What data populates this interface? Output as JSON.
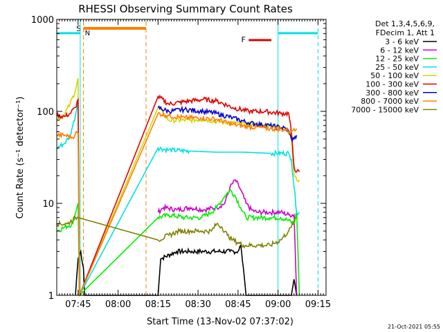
{
  "chart_data": {
    "type": "line",
    "title": "RHESSI Observing Summary Count Rates",
    "xlabel": "Start Time (13-Nov-02 07:37:02)",
    "ylabel": "Count Rate (s⁻¹ detector⁻¹)",
    "yscale": "log",
    "ylim": [
      1,
      1000
    ],
    "xlim_minutes": [
      0,
      101
    ],
    "x_ticks": [
      {
        "label": "07:45",
        "minutes": 8
      },
      {
        "label": "08:00",
        "minutes": 23
      },
      {
        "label": "08:15",
        "minutes": 38
      },
      {
        "label": "08:30",
        "minutes": 53
      },
      {
        "label": "08:45",
        "minutes": 68
      },
      {
        "label": "09:00",
        "minutes": 83
      },
      {
        "label": "09:15",
        "minutes": 98
      }
    ],
    "y_ticks": [
      {
        "label": "1",
        "value": 1
      },
      {
        "label": "10",
        "value": 10
      },
      {
        "label": "100",
        "value": 100
      },
      {
        "label": "1000",
        "value": 1000
      }
    ],
    "legend_header": [
      "Det 1,3,4,5,6,9,",
      "FDecim 1, Att 1"
    ],
    "legend_position": "right",
    "series": [
      {
        "name": "3 - 6 keV",
        "color": "#000000",
        "points": [
          [
            7,
            1
          ],
          [
            8,
            2.5
          ],
          [
            9,
            3
          ],
          [
            10,
            2
          ],
          [
            10.5,
            1
          ],
          [
            38,
            1
          ],
          [
            39,
            2.5
          ],
          [
            45,
            3
          ],
          [
            50,
            3
          ],
          [
            55,
            3
          ],
          [
            60,
            3
          ],
          [
            65,
            3
          ],
          [
            68,
            3
          ],
          [
            69,
            3.5
          ],
          [
            70,
            2
          ],
          [
            71,
            1
          ],
          [
            88,
            1
          ],
          [
            89,
            1.5
          ],
          [
            90,
            1
          ]
        ]
      },
      {
        "name": "6 - 12 keV",
        "color": "#cc00cc",
        "points": [
          [
            38,
            8
          ],
          [
            40,
            9
          ],
          [
            45,
            8.5
          ],
          [
            50,
            9
          ],
          [
            55,
            8.5
          ],
          [
            60,
            9
          ],
          [
            63,
            10
          ],
          [
            65,
            15
          ],
          [
            67,
            18
          ],
          [
            69,
            14
          ],
          [
            71,
            10
          ],
          [
            73,
            8.5
          ],
          [
            75,
            8
          ],
          [
            80,
            8
          ],
          [
            84,
            8
          ],
          [
            87,
            7.5
          ],
          [
            89,
            7.5
          ],
          [
            90,
            1
          ]
        ]
      },
      {
        "name": "12 - 25 keV",
        "color": "#00ee00",
        "points": [
          [
            0,
            5
          ],
          [
            3,
            5.5
          ],
          [
            6,
            6
          ],
          [
            7.5,
            9
          ],
          [
            8,
            10
          ],
          [
            8.5,
            1
          ],
          [
            38,
            7
          ],
          [
            42,
            7.5
          ],
          [
            48,
            7
          ],
          [
            54,
            7
          ],
          [
            58,
            8
          ],
          [
            60,
            9
          ],
          [
            63,
            12
          ],
          [
            65,
            14
          ],
          [
            67,
            12
          ],
          [
            69,
            9
          ],
          [
            71,
            7
          ],
          [
            75,
            7
          ],
          [
            80,
            7
          ],
          [
            84,
            7
          ],
          [
            87,
            6.5
          ],
          [
            89,
            6
          ],
          [
            90,
            8
          ],
          [
            91,
            1
          ]
        ]
      },
      {
        "name": "25 - 50 keV",
        "color": "#00e0e0",
        "points": [
          [
            0,
            40
          ],
          [
            3,
            45
          ],
          [
            5,
            55
          ],
          [
            6,
            70
          ],
          [
            7,
            90
          ],
          [
            8,
            130
          ],
          [
            8.5,
            1
          ],
          [
            38,
            40
          ],
          [
            42,
            38
          ],
          [
            50,
            37
          ],
          [
            60,
            36
          ],
          [
            70,
            36
          ],
          [
            80,
            35
          ],
          [
            87,
            35
          ],
          [
            88,
            30
          ],
          [
            90,
            8
          ],
          [
            91,
            8
          ]
        ]
      },
      {
        "name": "50 - 100 keV",
        "color": "#d4d400",
        "points": [
          [
            0,
            80
          ],
          [
            3,
            95
          ],
          [
            5,
            120
          ],
          [
            7,
            170
          ],
          [
            8,
            230
          ],
          [
            8.5,
            1
          ],
          [
            38,
            110
          ],
          [
            42,
            80
          ],
          [
            50,
            80
          ],
          [
            55,
            82
          ],
          [
            60,
            78
          ],
          [
            66,
            75
          ],
          [
            72,
            72
          ],
          [
            80,
            70
          ],
          [
            86,
            65
          ],
          [
            88,
            55
          ],
          [
            89,
            20
          ],
          [
            90,
            18
          ],
          [
            91,
            18
          ]
        ]
      },
      {
        "name": "100 - 300 keV",
        "color": "#dd0000",
        "points": [
          [
            0,
            90
          ],
          [
            3,
            88
          ],
          [
            5,
            95
          ],
          [
            7,
            110
          ],
          [
            8,
            135
          ],
          [
            8.5,
            1
          ],
          [
            38,
            145
          ],
          [
            42,
            120
          ],
          [
            46,
            125
          ],
          [
            50,
            130
          ],
          [
            55,
            135
          ],
          [
            60,
            130
          ],
          [
            66,
            110
          ],
          [
            72,
            100
          ],
          [
            78,
            100
          ],
          [
            84,
            95
          ],
          [
            87,
            95
          ],
          [
            88,
            60
          ],
          [
            89,
            25
          ],
          [
            90,
            22
          ],
          [
            91,
            22
          ]
        ]
      },
      {
        "name": "300 - 800 keV",
        "color": "#0000cc",
        "points": [
          [
            38,
            110
          ],
          [
            42,
            100
          ],
          [
            48,
            105
          ],
          [
            55,
            100
          ],
          [
            60,
            95
          ],
          [
            66,
            85
          ],
          [
            72,
            75
          ],
          [
            80,
            70
          ],
          [
            86,
            65
          ],
          [
            87,
            60
          ],
          [
            88,
            50
          ],
          [
            89,
            50
          ],
          [
            90,
            55
          ]
        ]
      },
      {
        "name": "800 - 7000 keV",
        "color": "#ff7f00",
        "points": [
          [
            0,
            55
          ],
          [
            3,
            55
          ],
          [
            6,
            52
          ],
          [
            7,
            58
          ],
          [
            8,
            58
          ],
          [
            8.5,
            1
          ],
          [
            38,
            95
          ],
          [
            42,
            90
          ],
          [
            48,
            85
          ],
          [
            54,
            85
          ],
          [
            60,
            82
          ],
          [
            66,
            72
          ],
          [
            72,
            68
          ],
          [
            80,
            65
          ],
          [
            86,
            63
          ],
          [
            88,
            60
          ],
          [
            89,
            65
          ],
          [
            90,
            65
          ]
        ]
      },
      {
        "name": "7000 - 15000 keV",
        "color": "#808000",
        "points": [
          [
            0,
            6
          ],
          [
            4,
            6
          ],
          [
            7,
            7
          ],
          [
            8,
            7
          ],
          [
            38,
            4
          ],
          [
            42,
            4.5
          ],
          [
            46,
            5
          ],
          [
            50,
            5
          ],
          [
            54,
            5
          ],
          [
            58,
            5
          ],
          [
            60,
            6
          ],
          [
            62,
            5.5
          ],
          [
            64,
            4.5
          ],
          [
            66,
            4
          ],
          [
            70,
            3.5
          ],
          [
            75,
            3.5
          ],
          [
            80,
            3.5
          ],
          [
            84,
            4
          ],
          [
            87,
            5
          ],
          [
            88,
            5.5
          ],
          [
            89,
            6.5
          ],
          [
            90,
            7
          ]
        ]
      }
    ],
    "annotations": [
      {
        "text": "S",
        "color": "#ff7f00"
      },
      {
        "text": "N",
        "color": "#00bfff"
      },
      {
        "text": "F",
        "color": "#dd0000"
      }
    ],
    "footer_timestamp": "21-Oct-2021 05:55"
  }
}
